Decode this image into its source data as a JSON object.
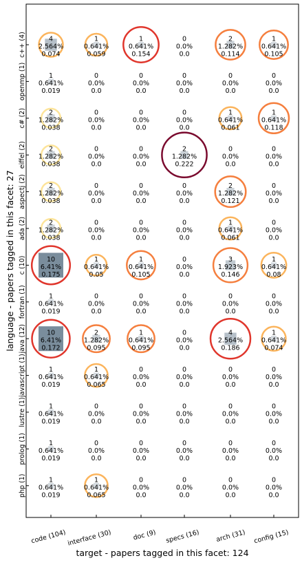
{
  "chart_data": {
    "type": "bubble_matrix",
    "xlabel": "target  -  papers tagged in this facet: 124",
    "ylabel": "language  -  papers tagged in this facet: 27",
    "grid": false,
    "x_categories": [
      "code (104)",
      "interface (30)",
      "doc (9)",
      "specs (16)",
      "arch (31)",
      "config (15)"
    ],
    "y_categories": [
      "c++ (4)",
      "openmp (1)",
      "c# (2)",
      "eiffel (2)",
      "aspectj (2)",
      "ada (2)",
      "c (10)",
      "fortran (1)",
      "java (12)",
      "javascript (1)",
      "lustre (1)",
      "prolog (1)",
      "php (1)"
    ],
    "counts": [
      [
        4,
        1,
        1,
        0,
        2,
        1
      ],
      [
        1,
        0,
        0,
        0,
        0,
        0
      ],
      [
        2,
        0,
        0,
        0,
        1,
        1
      ],
      [
        2,
        0,
        0,
        2,
        0,
        0
      ],
      [
        2,
        0,
        0,
        0,
        2,
        0
      ],
      [
        2,
        0,
        0,
        0,
        1,
        0
      ],
      [
        10,
        1,
        1,
        0,
        3,
        1
      ],
      [
        1,
        0,
        0,
        0,
        0,
        0
      ],
      [
        10,
        2,
        1,
        0,
        4,
        1
      ],
      [
        1,
        1,
        0,
        0,
        0,
        0
      ],
      [
        1,
        0,
        0,
        0,
        0,
        0
      ],
      [
        1,
        0,
        0,
        0,
        0,
        0
      ],
      [
        1,
        1,
        0,
        0,
        0,
        0
      ]
    ],
    "percents": [
      [
        "2.564%",
        "0.641%",
        "0.641%",
        "0.0%",
        "1.282%",
        "0.641%"
      ],
      [
        "0.641%",
        "0.0%",
        "0.0%",
        "0.0%",
        "0.0%",
        "0.0%"
      ],
      [
        "1.282%",
        "0.0%",
        "0.0%",
        "0.0%",
        "0.641%",
        "0.641%"
      ],
      [
        "1.282%",
        "0.0%",
        "0.0%",
        "1.282%",
        "0.0%",
        "0.0%"
      ],
      [
        "1.282%",
        "0.0%",
        "0.0%",
        "0.0%",
        "1.282%",
        "0.0%"
      ],
      [
        "1.282%",
        "0.0%",
        "0.0%",
        "0.0%",
        "0.641%",
        "0.0%"
      ],
      [
        "6.41%",
        "0.641%",
        "0.641%",
        "0.0%",
        "1.923%",
        "0.641%"
      ],
      [
        "0.641%",
        "0.0%",
        "0.0%",
        "0.0%",
        "0.0%",
        "0.0%"
      ],
      [
        "6.41%",
        "1.282%",
        "0.641%",
        "0.0%",
        "2.564%",
        "0.641%"
      ],
      [
        "0.641%",
        "0.641%",
        "0.0%",
        "0.0%",
        "0.0%",
        "0.0%"
      ],
      [
        "0.641%",
        "0.0%",
        "0.0%",
        "0.0%",
        "0.0%",
        "0.0%"
      ],
      [
        "0.641%",
        "0.0%",
        "0.0%",
        "0.0%",
        "0.0%",
        "0.0%"
      ],
      [
        "0.641%",
        "0.641%",
        "0.0%",
        "0.0%",
        "0.0%",
        "0.0%"
      ]
    ],
    "scores": [
      [
        "0.074",
        "0.059",
        "0.154",
        "0.0",
        "0.114",
        "0.105"
      ],
      [
        "0.019",
        "0.0",
        "0.0",
        "0.0",
        "0.0",
        "0.0"
      ],
      [
        "0.038",
        "0.0",
        "0.0",
        "0.0",
        "0.061",
        "0.118"
      ],
      [
        "0.038",
        "0.0",
        "0.0",
        "0.222",
        "0.0",
        "0.0"
      ],
      [
        "0.038",
        "0.0",
        "0.0",
        "0.0",
        "0.121",
        "0.0"
      ],
      [
        "0.038",
        "0.0",
        "0.0",
        "0.0",
        "0.061",
        "0.0"
      ],
      [
        "0.175",
        "0.05",
        "0.105",
        "0.0",
        "0.146",
        "0.08"
      ],
      [
        "0.019",
        "0.0",
        "0.0",
        "0.0",
        "0.0",
        "0.0"
      ],
      [
        "0.172",
        "0.095",
        "0.095",
        "0.0",
        "0.186",
        "0.074"
      ],
      [
        "0.019",
        "0.065",
        "0.0",
        "0.0",
        "0.0",
        "0.0"
      ],
      [
        "0.019",
        "0.0",
        "0.0",
        "0.0",
        "0.0",
        "0.0"
      ],
      [
        "0.019",
        "0.0",
        "0.0",
        "0.0",
        "0.0",
        "0.0"
      ],
      [
        "0.019",
        "0.065",
        "0.0",
        "0.0",
        "0.0",
        "0.0"
      ]
    ],
    "colors": {
      "square": "#7a8d9c",
      "score_scale": [
        "#fde49a",
        "#fbb45c",
        "#f57f3e",
        "#e0362c",
        "#7a0a2e"
      ]
    }
  }
}
